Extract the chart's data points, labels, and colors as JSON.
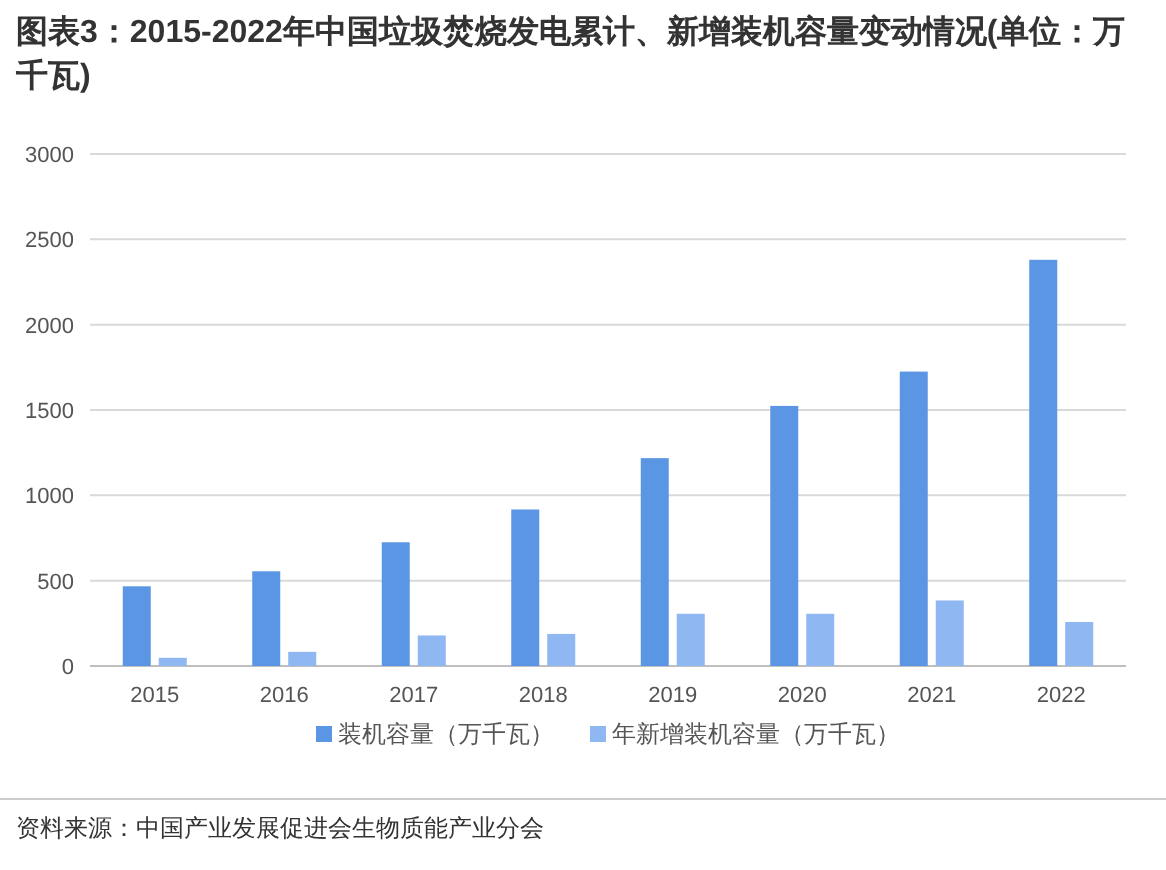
{
  "chart_data": {
    "type": "bar",
    "title": "图表3：2015-2022年中国垃圾焚烧发电累计、新增装机容量变动情况(单位：万千瓦)",
    "categories": [
      "2015",
      "2016",
      "2017",
      "2018",
      "2019",
      "2020",
      "2021",
      "2022"
    ],
    "series": [
      {
        "name": "装机容量（万千瓦）",
        "color": "#5b96e4",
        "values": [
          467,
          555,
          725,
          917,
          1218,
          1524,
          1725,
          2380
        ]
      },
      {
        "name": "年新增装机容量（万千瓦）",
        "color": "#8fb7f2",
        "values": [
          48,
          83,
          179,
          188,
          306,
          306,
          384,
          258
        ]
      }
    ],
    "ylim": [
      0,
      3000
    ],
    "yticks": [
      0,
      500,
      1000,
      1500,
      2000,
      2500,
      3000
    ],
    "grid": "y",
    "legend": "bottom",
    "annotations": [
      "资料来源：中国产业发展促进会生物质能产业分会"
    ]
  }
}
